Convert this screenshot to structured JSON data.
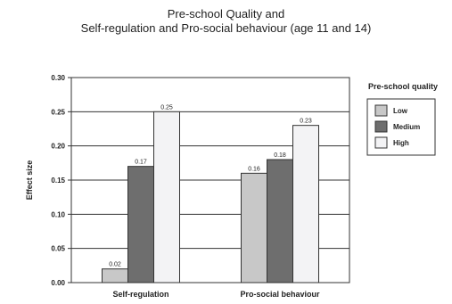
{
  "chart_data": {
    "type": "bar",
    "title_line1": "Pre-school Quality and",
    "title_line2": "Self-regulation and Pro-social behaviour  (age 11 and 14)",
    "xlabel": "",
    "ylabel": "Effect size",
    "ylim": [
      0,
      0.3
    ],
    "yticks": [
      "0.00",
      "0.05",
      "0.10",
      "0.15",
      "0.20",
      "0.25",
      "0.30"
    ],
    "categories": [
      "Self-regulation",
      "Pro-social behaviour"
    ],
    "legend_title": "Pre-school quality",
    "legend_position": "right",
    "grid": true,
    "series": [
      {
        "name": "Low",
        "color": "#c8c8c8",
        "values": [
          0.02,
          0.16
        ],
        "labels": [
          "0.02",
          "0.16"
        ]
      },
      {
        "name": "Medium",
        "color": "#6e6e6e",
        "values": [
          0.17,
          0.18
        ],
        "labels": [
          "0.17",
          "0.18"
        ]
      },
      {
        "name": "High",
        "color": "#f3f3f5",
        "values": [
          0.25,
          0.23
        ],
        "labels": [
          "0.25",
          "0.23"
        ]
      }
    ]
  }
}
